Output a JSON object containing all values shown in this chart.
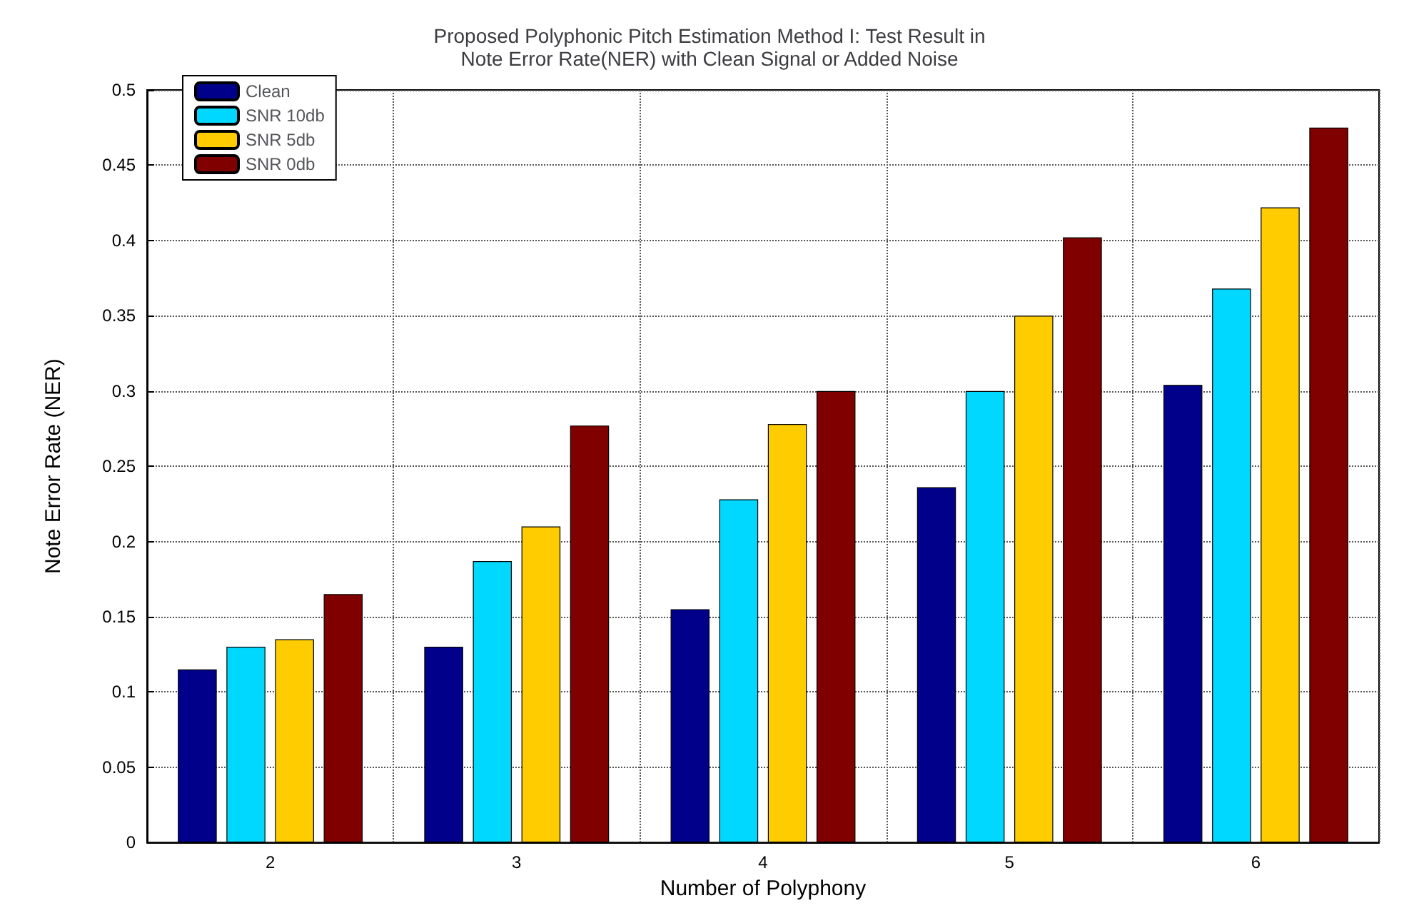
{
  "chart_data": {
    "type": "bar",
    "title": "Proposed Polyphonic Pitch Estimation Method I: Test Result in\nNote Error Rate(NER) with Clean Signal or Added Noise",
    "xlabel": "Number of Polyphony",
    "ylabel": "Note Error Rate (NER)",
    "categories": [
      "2",
      "3",
      "4",
      "5",
      "6"
    ],
    "series": [
      {
        "name": "Clean",
        "color": "#00008b",
        "values": [
          0.115,
          0.13,
          0.155,
          0.236,
          0.304
        ]
      },
      {
        "name": "SNR 10db",
        "color": "#00d8ff",
        "values": [
          0.13,
          0.187,
          0.228,
          0.3,
          0.368
        ]
      },
      {
        "name": "SNR 5db",
        "color": "#ffcc00",
        "values": [
          0.135,
          0.21,
          0.278,
          0.35,
          0.422
        ]
      },
      {
        "name": "SNR 0db",
        "color": "#800000",
        "values": [
          0.165,
          0.277,
          0.3,
          0.402,
          0.475
        ]
      }
    ],
    "ylim": [
      0,
      0.5
    ],
    "yticks": [
      0,
      0.05,
      0.1,
      0.15,
      0.2,
      0.25,
      0.3,
      0.35,
      0.4,
      0.45,
      0.5
    ],
    "grid": true,
    "legend": "top left"
  }
}
